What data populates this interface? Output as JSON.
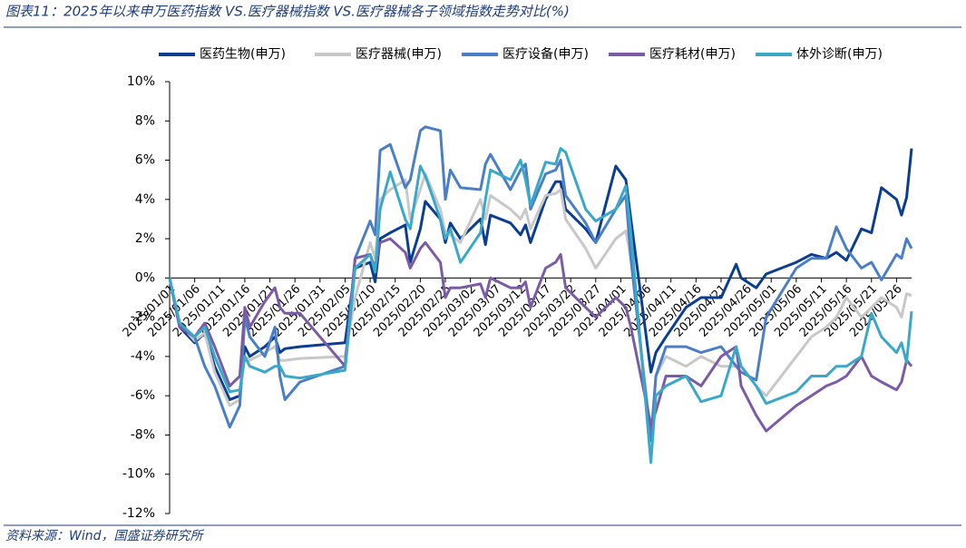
{
  "chart_data": {
    "type": "line",
    "title": "图表11：2025年以来申万医药指数 VS.医疗器械指数 VS.医疗器械各子领域指数走势对比(%)",
    "source": "资料来源：Wind，国盛证券研究所",
    "x": [
      "2025/01/01",
      "2025/01/03",
      "2025/01/06",
      "2025/01/08",
      "2025/01/10",
      "2025/01/13",
      "2025/01/15",
      "2025/01/16",
      "2025/01/17",
      "2025/01/20",
      "2025/01/22",
      "2025/01/23",
      "2025/01/24",
      "2025/01/27",
      "2025/02/05",
      "2025/02/07",
      "2025/02/10",
      "2025/02/11",
      "2025/02/12",
      "2025/02/14",
      "2025/02/17",
      "2025/02/18",
      "2025/02/20",
      "2025/02/21",
      "2025/02/24",
      "2025/02/25",
      "2025/02/26",
      "2025/02/28",
      "2025/03/04",
      "2025/03/05",
      "2025/03/06",
      "2025/03/10",
      "2025/03/12",
      "2025/03/13",
      "2025/03/14",
      "2025/03/17",
      "2025/03/19",
      "2025/03/20",
      "2025/03/21",
      "2025/03/25",
      "2025/03/27",
      "2025/03/31",
      "2025/04/02",
      "2025/04/03",
      "2025/04/07",
      "2025/04/08",
      "2025/04/10",
      "2025/04/14",
      "2025/04/17",
      "2025/04/21",
      "2025/04/24",
      "2025/04/25",
      "2025/04/28",
      "2025/04/30",
      "2025/05/06",
      "2025/05/09",
      "2025/05/12",
      "2025/05/14",
      "2025/05/16",
      "2025/05/19",
      "2025/05/21",
      "2025/05/23",
      "2025/05/26",
      "2025/05/27",
      "2025/05/28",
      "2025/05/29"
    ],
    "xlim": [
      "2025/01/01",
      "2025/05/29"
    ],
    "xticks": [
      "2025/01/01",
      "2025/01/06",
      "2025/01/11",
      "2025/01/16",
      "2025/01/21",
      "2025/01/26",
      "2025/01/31",
      "2025/02/05",
      "2025/02/10",
      "2025/02/15",
      "2025/02/20",
      "2025/02/25",
      "2025/03/02",
      "2025/03/07",
      "2025/03/12",
      "2025/03/17",
      "2025/03/22",
      "2025/03/27",
      "2025/04/01",
      "2025/04/06",
      "2025/04/11",
      "2025/04/16",
      "2025/04/21",
      "2025/04/26",
      "2025/05/01",
      "2025/05/06",
      "2025/05/11",
      "2025/05/16",
      "2025/05/21",
      "2025/05/26"
    ],
    "ylim": [
      -12,
      10
    ],
    "yticks": [
      {
        "value": -12,
        "label": "-12%"
      },
      {
        "value": -10,
        "label": "-10%"
      },
      {
        "value": -8,
        "label": "-8%"
      },
      {
        "value": -6,
        "label": "-6%"
      },
      {
        "value": -4,
        "label": "-4%"
      },
      {
        "value": -2,
        "label": "-2%"
      },
      {
        "value": 0,
        "label": "0%"
      },
      {
        "value": 2,
        "label": "2%"
      },
      {
        "value": 4,
        "label": "4%"
      },
      {
        "value": 6,
        "label": "6%"
      },
      {
        "value": 8,
        "label": "8%"
      },
      {
        "value": 10,
        "label": "10%"
      }
    ],
    "legend": "top",
    "series": [
      {
        "name": "医药生物(申万)",
        "color": "#0b3d91",
        "values": [
          0,
          -2.5,
          -3.3,
          -2.8,
          -4.5,
          -6.2,
          -6.0,
          -3.5,
          -4.0,
          -3.5,
          -3.0,
          -3.8,
          -3.6,
          -3.5,
          -3.3,
          0.5,
          0.8,
          -0.2,
          2.0,
          2.3,
          2.7,
          0.8,
          2.5,
          3.9,
          3.0,
          1.8,
          2.8,
          2.0,
          3.0,
          1.7,
          3.2,
          2.8,
          2.2,
          2.7,
          1.8,
          4.0,
          4.9,
          4.9,
          3.5,
          2.5,
          1.8,
          5.7,
          5.0,
          3.0,
          -4.8,
          -3.8,
          -3.0,
          -1.5,
          -1.0,
          -1.0,
          0.7,
          0.0,
          -0.5,
          0.2,
          0.8,
          1.2,
          1.0,
          1.3,
          0.9,
          2.5,
          2.3,
          4.6,
          4.0,
          3.2,
          4.1,
          6.6
        ]
      },
      {
        "name": "医疗器械(申万)",
        "color": "#c8c8c8",
        "values": [
          0,
          -2.3,
          -3.2,
          -2.8,
          -4.8,
          -6.5,
          -6.2,
          -4.0,
          -4.2,
          -3.8,
          -3.5,
          -4.2,
          -4.2,
          -4.1,
          -4.0,
          -1.0,
          1.8,
          1.0,
          4.0,
          4.5,
          5.0,
          3.0,
          4.5,
          5.3,
          3.5,
          2.3,
          2.2,
          1.8,
          4.0,
          3.0,
          4.2,
          3.5,
          3.0,
          3.5,
          2.5,
          4.2,
          4.3,
          4.5,
          3.0,
          1.5,
          0.5,
          2.0,
          2.4,
          1.0,
          -8.0,
          -5.0,
          -4.0,
          -4.5,
          -4.0,
          -4.5,
          -4.5,
          -4.5,
          -5.5,
          -6.0,
          -4.0,
          -3.0,
          -2.5,
          -2.0,
          -1.0,
          -2.0,
          -1.5,
          -1.0,
          -1.5,
          -2.0,
          -0.8,
          -0.9
        ]
      },
      {
        "name": "医疗设备(申万)",
        "color": "#4a7fc8",
        "values": [
          0,
          -2.5,
          -3.0,
          -4.5,
          -5.5,
          -7.6,
          -6.5,
          -2.0,
          -3.0,
          -4.0,
          -2.5,
          -5.0,
          -6.2,
          -5.3,
          -4.5,
          1.0,
          2.9,
          2.2,
          6.5,
          6.8,
          4.6,
          5.0,
          7.5,
          7.7,
          7.5,
          4.0,
          5.5,
          4.6,
          4.5,
          5.8,
          6.3,
          4.5,
          5.5,
          5.8,
          3.5,
          5.3,
          5.5,
          6.0,
          4.2,
          2.8,
          1.8,
          3.5,
          4.2,
          1.0,
          -8.3,
          -5.0,
          -3.5,
          -3.5,
          -3.8,
          -3.5,
          -4.5,
          -4.8,
          -5.2,
          -2.0,
          0.5,
          1.0,
          1.0,
          2.6,
          1.5,
          0.5,
          0.8,
          -0.1,
          1.2,
          1.0,
          2.0,
          1.5
        ]
      },
      {
        "name": "医疗耗材(申万)",
        "color": "#7b5ba6",
        "values": [
          0,
          -2.5,
          -3.0,
          -2.3,
          -3.5,
          -5.5,
          -5.0,
          -1.5,
          -2.5,
          -1.2,
          -0.5,
          -1.5,
          -1.8,
          -1.8,
          -4.5,
          1.0,
          1.2,
          0.5,
          1.8,
          2.0,
          1.3,
          0.5,
          1.5,
          1.8,
          0.8,
          -1.0,
          -0.5,
          -0.5,
          -0.3,
          -1.0,
          0.0,
          -0.5,
          -0.5,
          -0.2,
          -1.5,
          0.5,
          0.8,
          1.2,
          -0.5,
          -1.5,
          -2.0,
          -1.0,
          -1.5,
          -2.5,
          -7.5,
          -6.8,
          -5.0,
          -5.0,
          -5.5,
          -4.0,
          -3.5,
          -5.5,
          -7.0,
          -7.8,
          -6.5,
          -6.0,
          -5.5,
          -5.3,
          -5.0,
          -4.0,
          -5.0,
          -5.3,
          -5.7,
          -5.3,
          -4.2,
          -4.5
        ]
      },
      {
        "name": "体外诊断(申万)",
        "color": "#3aa8c8",
        "values": [
          0,
          -2.3,
          -3.0,
          -2.5,
          -4.0,
          -5.8,
          -5.7,
          -4.0,
          -4.5,
          -4.8,
          -4.5,
          -4.5,
          -5.0,
          -5.1,
          -4.7,
          0.5,
          1.2,
          0.3,
          3.5,
          5.4,
          3.0,
          2.5,
          5.7,
          5.2,
          3.0,
          2.0,
          2.5,
          0.8,
          2.3,
          4.0,
          5.5,
          5.0,
          6.0,
          5.0,
          3.7,
          5.9,
          5.8,
          6.6,
          6.4,
          3.5,
          2.9,
          3.5,
          4.7,
          2.3,
          -9.4,
          -6.0,
          -5.5,
          -5.0,
          -6.3,
          -6.0,
          -3.5,
          -4.5,
          -5.5,
          -6.4,
          -5.8,
          -5.0,
          -5.0,
          -4.5,
          -4.5,
          -4.0,
          -1.8,
          -3.0,
          -3.8,
          -3.3,
          -4.3,
          -1.7
        ]
      }
    ]
  }
}
